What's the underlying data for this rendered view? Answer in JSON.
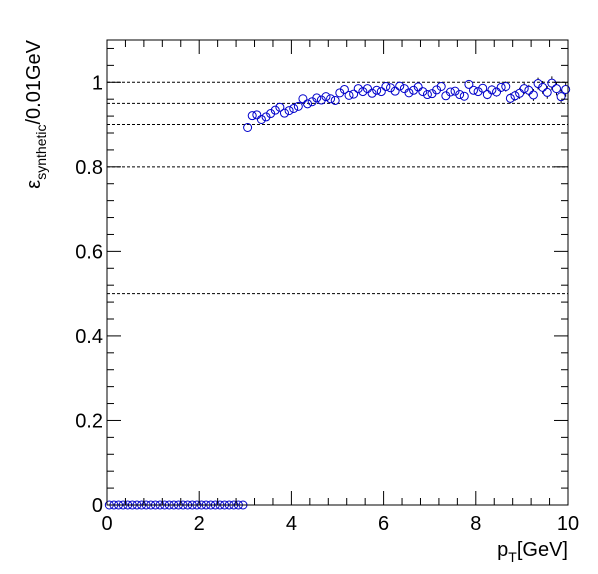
{
  "chart_data": {
    "type": "scatter",
    "xlabel": {
      "main": "p",
      "sub": "T",
      "suffix": "[GeV]"
    },
    "ylabel": {
      "main": "ε",
      "sub": "synthetic",
      "suffix": "/0.01GeV"
    },
    "xlim": [
      0,
      10
    ],
    "ylim": [
      0,
      1.1
    ],
    "x_ticks": [
      0,
      2,
      4,
      6,
      8,
      10
    ],
    "y_ticks": [
      0,
      0.2,
      0.4,
      0.6,
      0.8,
      1
    ],
    "reference_lines": [
      0.5,
      0.8,
      0.9,
      0.95,
      1.0
    ],
    "marker_color": "#0000cc",
    "grid": false,
    "series": [
      {
        "points": [
          {
            "x": 0.05,
            "y": 0
          },
          {
            "x": 0.15,
            "y": 0
          },
          {
            "x": 0.25,
            "y": 0
          },
          {
            "x": 0.35,
            "y": 0
          },
          {
            "x": 0.45,
            "y": 0
          },
          {
            "x": 0.55,
            "y": 0
          },
          {
            "x": 0.65,
            "y": 0
          },
          {
            "x": 0.75,
            "y": 0
          },
          {
            "x": 0.85,
            "y": 0
          },
          {
            "x": 0.95,
            "y": 0
          },
          {
            "x": 1.05,
            "y": 0
          },
          {
            "x": 1.15,
            "y": 0
          },
          {
            "x": 1.25,
            "y": 0
          },
          {
            "x": 1.35,
            "y": 0
          },
          {
            "x": 1.45,
            "y": 0
          },
          {
            "x": 1.55,
            "y": 0
          },
          {
            "x": 1.65,
            "y": 0
          },
          {
            "x": 1.75,
            "y": 0
          },
          {
            "x": 1.85,
            "y": 0
          },
          {
            "x": 1.95,
            "y": 0
          },
          {
            "x": 2.05,
            "y": 0
          },
          {
            "x": 2.15,
            "y": 0
          },
          {
            "x": 2.25,
            "y": 0
          },
          {
            "x": 2.35,
            "y": 0
          },
          {
            "x": 2.45,
            "y": 0
          },
          {
            "x": 2.55,
            "y": 0
          },
          {
            "x": 2.65,
            "y": 0
          },
          {
            "x": 2.75,
            "y": 0
          },
          {
            "x": 2.85,
            "y": 0
          },
          {
            "x": 2.95,
            "y": 0
          },
          {
            "x": 3.05,
            "y": 0.893,
            "err": 0.006
          },
          {
            "x": 3.15,
            "y": 0.921,
            "err": 0.006
          },
          {
            "x": 3.25,
            "y": 0.923,
            "err": 0.006
          },
          {
            "x": 3.35,
            "y": 0.912,
            "err": 0.006
          },
          {
            "x": 3.45,
            "y": 0.918,
            "err": 0.006
          },
          {
            "x": 3.55,
            "y": 0.926,
            "err": 0.006
          },
          {
            "x": 3.65,
            "y": 0.934,
            "err": 0.006
          },
          {
            "x": 3.75,
            "y": 0.941,
            "err": 0.006
          },
          {
            "x": 3.85,
            "y": 0.927,
            "err": 0.006
          },
          {
            "x": 3.95,
            "y": 0.933,
            "err": 0.006
          },
          {
            "x": 4.05,
            "y": 0.938,
            "err": 0.006
          },
          {
            "x": 4.15,
            "y": 0.943,
            "err": 0.006
          },
          {
            "x": 4.25,
            "y": 0.961,
            "err": 0.006
          },
          {
            "x": 4.35,
            "y": 0.949,
            "err": 0.006
          },
          {
            "x": 4.45,
            "y": 0.954,
            "err": 0.006
          },
          {
            "x": 4.55,
            "y": 0.963,
            "err": 0.006
          },
          {
            "x": 4.65,
            "y": 0.958,
            "err": 0.006
          },
          {
            "x": 4.75,
            "y": 0.966,
            "err": 0.006
          },
          {
            "x": 4.85,
            "y": 0.961,
            "err": 0.006
          },
          {
            "x": 4.95,
            "y": 0.957,
            "err": 0.006
          },
          {
            "x": 5.05,
            "y": 0.975,
            "err": 0.006
          },
          {
            "x": 5.15,
            "y": 0.983,
            "err": 0.006
          },
          {
            "x": 5.25,
            "y": 0.969,
            "err": 0.007
          },
          {
            "x": 5.35,
            "y": 0.972,
            "err": 0.007
          },
          {
            "x": 5.45,
            "y": 0.985,
            "err": 0.007
          },
          {
            "x": 5.55,
            "y": 0.978,
            "err": 0.007
          },
          {
            "x": 5.65,
            "y": 0.985,
            "err": 0.007
          },
          {
            "x": 5.75,
            "y": 0.974,
            "err": 0.007
          },
          {
            "x": 5.85,
            "y": 0.981,
            "err": 0.007
          },
          {
            "x": 5.95,
            "y": 0.978,
            "err": 0.007
          },
          {
            "x": 6.05,
            "y": 0.99,
            "err": 0.007
          },
          {
            "x": 6.15,
            "y": 0.987,
            "err": 0.007
          },
          {
            "x": 6.25,
            "y": 0.979,
            "err": 0.007
          },
          {
            "x": 6.35,
            "y": 0.991,
            "err": 0.007
          },
          {
            "x": 6.45,
            "y": 0.985,
            "err": 0.008
          },
          {
            "x": 6.55,
            "y": 0.975,
            "err": 0.008
          },
          {
            "x": 6.65,
            "y": 0.981,
            "err": 0.008
          },
          {
            "x": 6.75,
            "y": 0.989,
            "err": 0.008
          },
          {
            "x": 6.85,
            "y": 0.978,
            "err": 0.008
          },
          {
            "x": 6.95,
            "y": 0.971,
            "err": 0.008
          },
          {
            "x": 7.05,
            "y": 0.973,
            "err": 0.008
          },
          {
            "x": 7.15,
            "y": 0.982,
            "err": 0.008
          },
          {
            "x": 7.25,
            "y": 0.99,
            "err": 0.009
          },
          {
            "x": 7.35,
            "y": 0.968,
            "err": 0.009
          },
          {
            "x": 7.45,
            "y": 0.977,
            "err": 0.009
          },
          {
            "x": 7.55,
            "y": 0.979,
            "err": 0.009
          },
          {
            "x": 7.65,
            "y": 0.971,
            "err": 0.009
          },
          {
            "x": 7.75,
            "y": 0.967,
            "err": 0.01
          },
          {
            "x": 7.85,
            "y": 0.995,
            "err": 0.01
          },
          {
            "x": 7.95,
            "y": 0.981,
            "err": 0.01
          },
          {
            "x": 8.05,
            "y": 0.978,
            "err": 0.01
          },
          {
            "x": 8.15,
            "y": 0.986,
            "err": 0.01
          },
          {
            "x": 8.25,
            "y": 0.971,
            "err": 0.011
          },
          {
            "x": 8.35,
            "y": 0.982,
            "err": 0.011
          },
          {
            "x": 8.45,
            "y": 0.977,
            "err": 0.011
          },
          {
            "x": 8.55,
            "y": 0.988,
            "err": 0.011
          },
          {
            "x": 8.65,
            "y": 0.99,
            "err": 0.012
          },
          {
            "x": 8.75,
            "y": 0.962,
            "err": 0.012
          },
          {
            "x": 8.85,
            "y": 0.968,
            "err": 0.012
          },
          {
            "x": 8.95,
            "y": 0.974,
            "err": 0.013
          },
          {
            "x": 9.05,
            "y": 0.985,
            "err": 0.013
          },
          {
            "x": 9.15,
            "y": 0.981,
            "err": 0.013
          },
          {
            "x": 9.25,
            "y": 0.97,
            "err": 0.014
          },
          {
            "x": 9.35,
            "y": 0.997,
            "err": 0.014
          },
          {
            "x": 9.45,
            "y": 0.988,
            "err": 0.015
          },
          {
            "x": 9.55,
            "y": 0.976,
            "err": 0.015
          },
          {
            "x": 9.65,
            "y": 0.998,
            "err": 0.016
          },
          {
            "x": 9.75,
            "y": 0.985,
            "err": 0.016
          },
          {
            "x": 9.85,
            "y": 0.966,
            "err": 0.017
          },
          {
            "x": 9.95,
            "y": 0.983,
            "err": 0.017
          }
        ]
      }
    ]
  }
}
